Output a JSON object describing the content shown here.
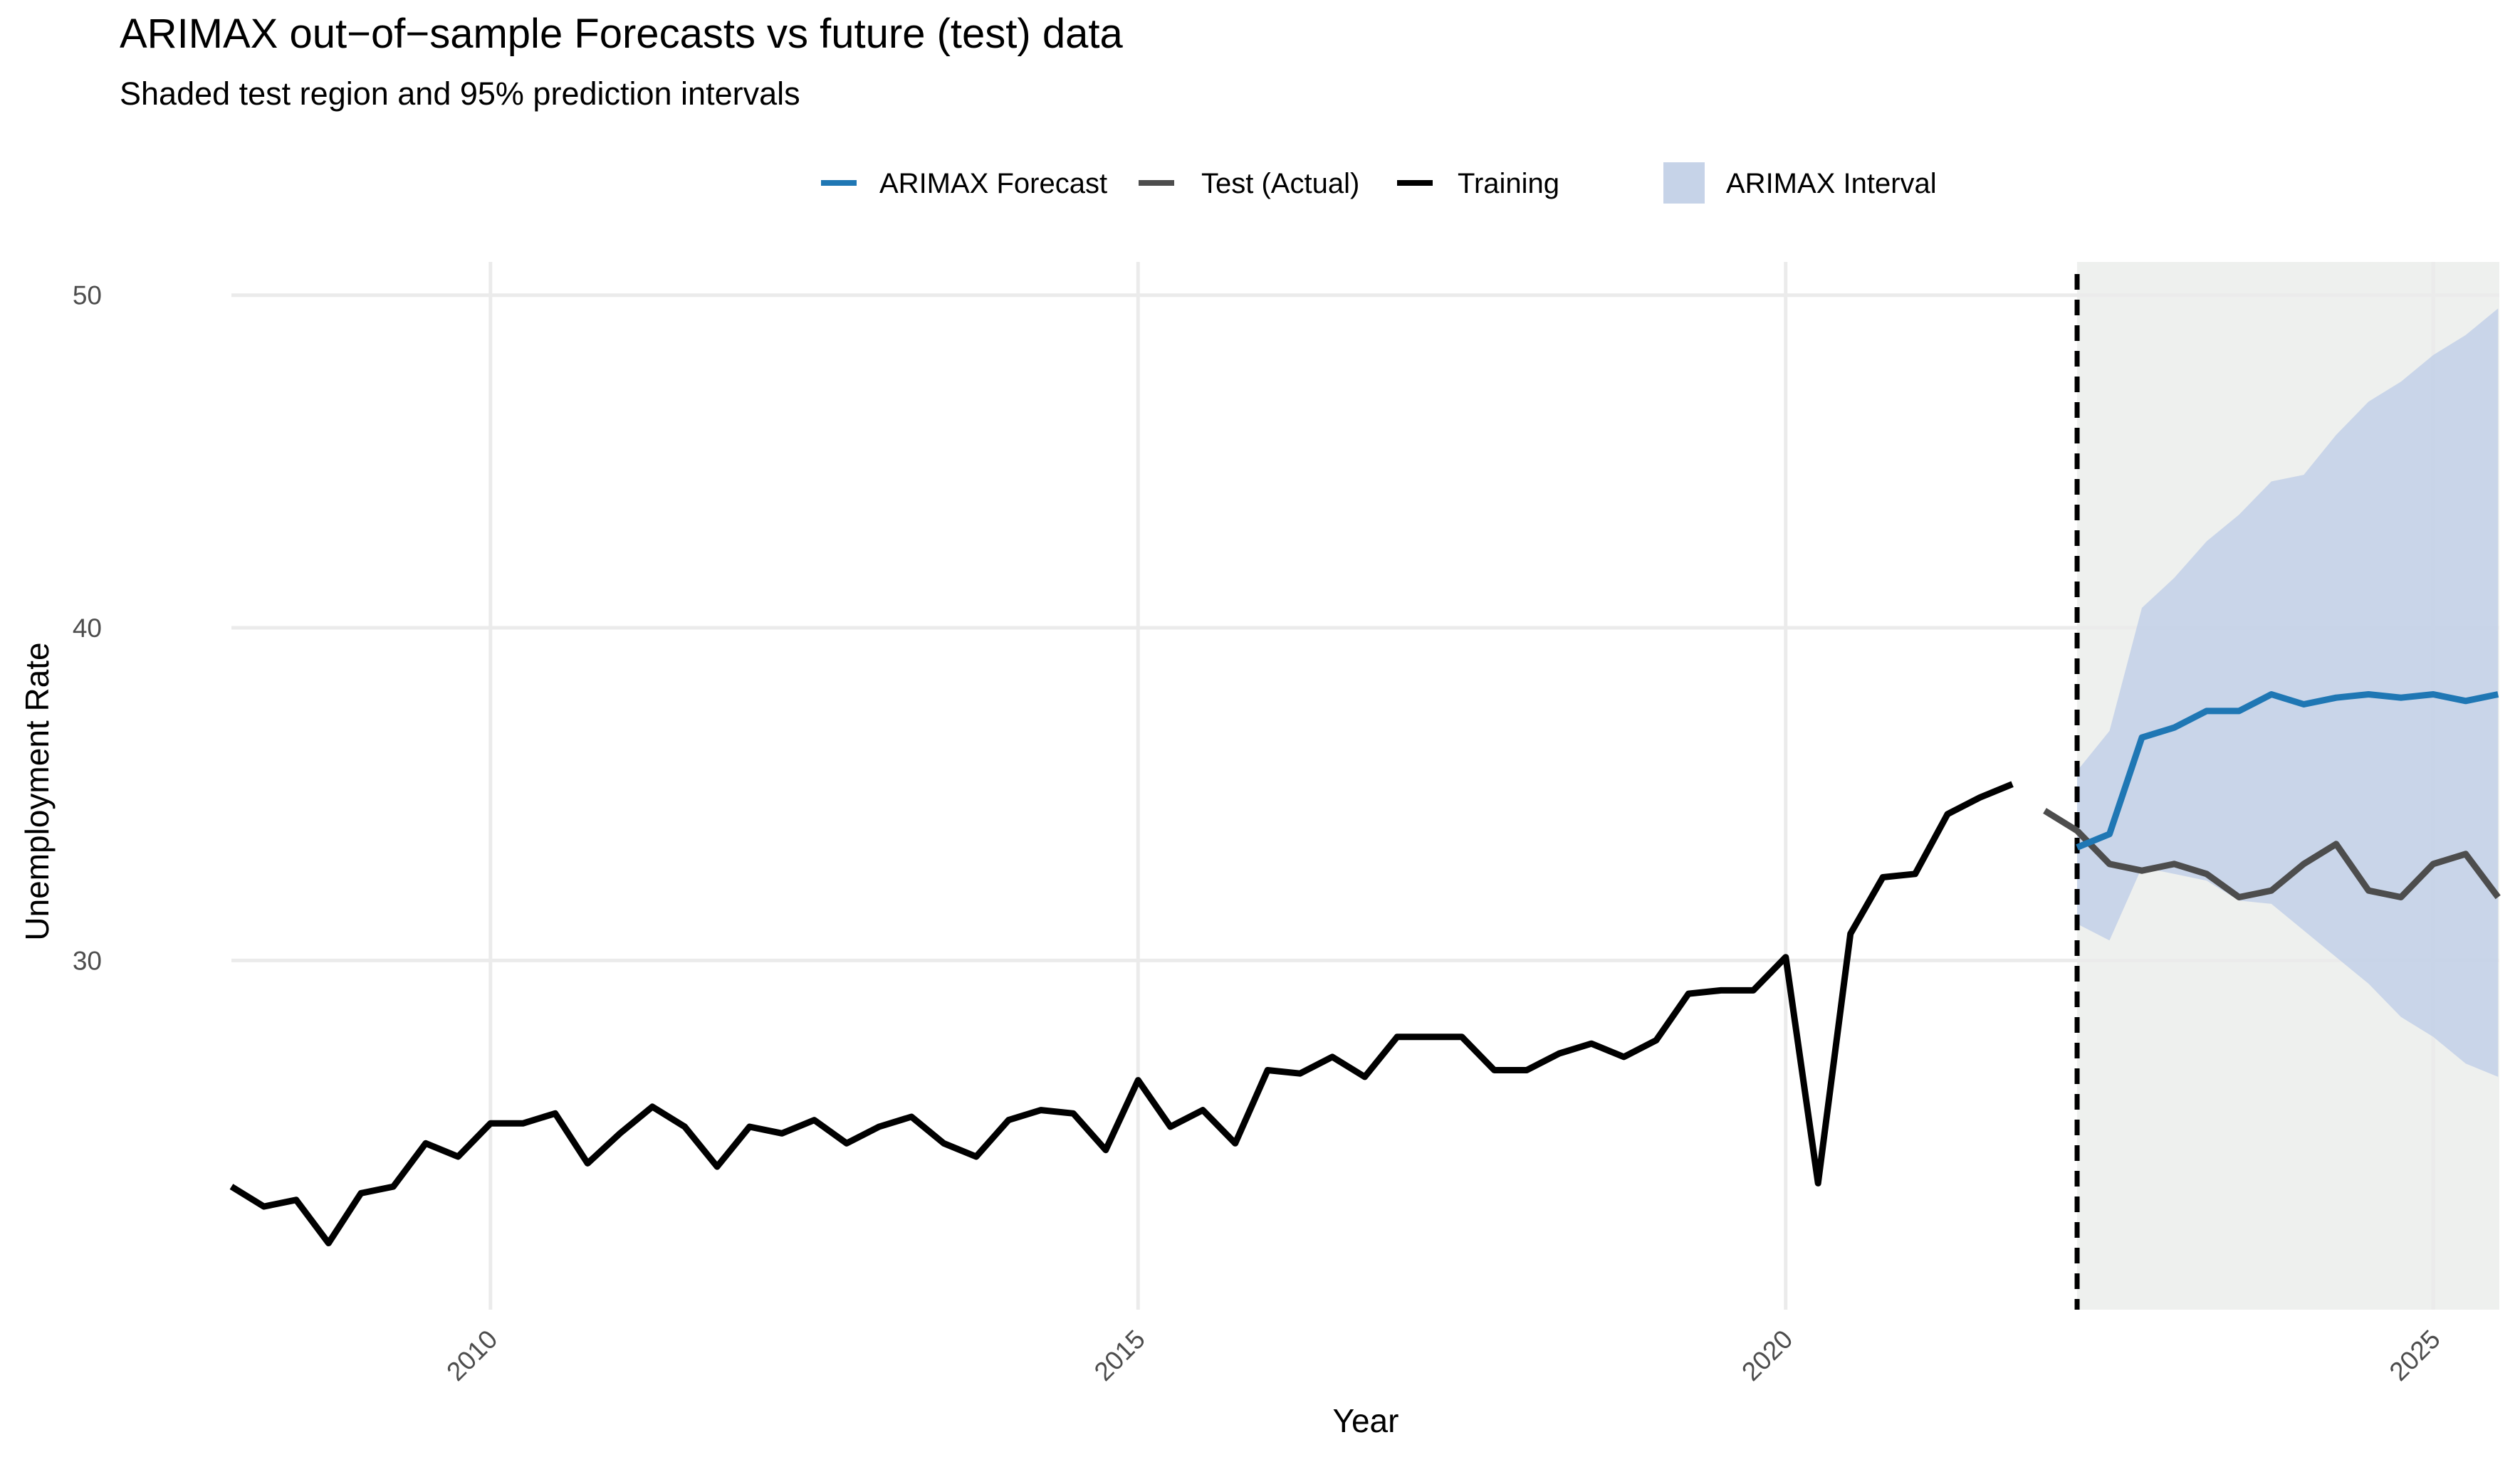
{
  "chart_data": {
    "type": "line",
    "title": "ARIMAX out−of−sample Forecasts vs future (test) data",
    "subtitle": "Shaded test region and 95% prediction intervals",
    "xlabel": "Year",
    "ylabel": "Unemployment Rate",
    "xlim": [
      2008.0,
      2025.51
    ],
    "ylim": [
      19.5,
      51.0
    ],
    "x_ticks": [
      2010,
      2015,
      2020,
      2025
    ],
    "x_tick_labels": [
      "2010",
      "2015",
      "2020",
      "2025"
    ],
    "y_ticks": [
      30,
      40,
      50
    ],
    "y_tick_labels": [
      "30",
      "40",
      "50"
    ],
    "grid": true,
    "legend_position": "top",
    "split_x": 2022.25,
    "legend": [
      {
        "label": "ARIMAX Forecast",
        "kind": "line",
        "color": "#1f77b4"
      },
      {
        "label": "Test (Actual)",
        "kind": "line",
        "color": "#4d4d4d"
      },
      {
        "label": "Training",
        "kind": "line",
        "color": "#000000"
      },
      {
        "label": "ARIMAX Interval",
        "kind": "fill",
        "color": "#c6d3e8"
      }
    ],
    "series": [
      {
        "name": "Training",
        "color": "#000000",
        "x": [
          2008.0,
          2008.25,
          2008.5,
          2008.75,
          2009.0,
          2009.25,
          2009.5,
          2009.75,
          2010.0,
          2010.25,
          2010.5,
          2010.75,
          2011.0,
          2011.25,
          2011.5,
          2011.75,
          2012.0,
          2012.25,
          2012.5,
          2012.75,
          2013.0,
          2013.25,
          2013.5,
          2013.75,
          2014.0,
          2014.25,
          2014.5,
          2014.75,
          2015.0,
          2015.25,
          2015.5,
          2015.75,
          2016.0,
          2016.25,
          2016.5,
          2016.75,
          2017.0,
          2017.25,
          2017.5,
          2017.75,
          2018.0,
          2018.25,
          2018.5,
          2018.75,
          2019.0,
          2019.25,
          2019.5,
          2019.75,
          2020.0,
          2020.25,
          2020.5,
          2020.75,
          2021.0,
          2021.25,
          2021.5,
          2021.75
        ],
        "y": [
          23.2,
          22.6,
          22.8,
          21.5,
          23.0,
          23.2,
          24.5,
          24.1,
          25.1,
          25.1,
          25.4,
          23.9,
          24.8,
          25.6,
          25.0,
          23.8,
          25.0,
          24.8,
          25.2,
          24.5,
          25.0,
          25.3,
          24.5,
          24.1,
          25.2,
          25.5,
          25.4,
          24.3,
          26.4,
          25.0,
          25.5,
          24.5,
          26.7,
          26.6,
          27.1,
          26.5,
          27.7,
          27.7,
          27.7,
          26.7,
          26.7,
          27.2,
          27.5,
          27.1,
          27.6,
          29.0,
          29.1,
          29.1,
          30.1,
          23.3,
          30.8,
          32.5,
          32.6,
          34.4,
          34.9,
          35.3
        ]
      },
      {
        "name": "Test (Actual)",
        "color": "#4d4d4d",
        "x": [
          2022.0,
          2022.25,
          2022.5,
          2022.75,
          2023.0,
          2023.25,
          2023.5,
          2023.75,
          2024.0,
          2024.25,
          2024.5,
          2024.75,
          2025.0,
          2025.25,
          2025.5
        ],
        "y": [
          34.5,
          33.9,
          32.9,
          32.7,
          32.9,
          32.6,
          31.9,
          32.1,
          32.9,
          33.5,
          32.1,
          31.9,
          32.9,
          33.2,
          31.9
        ]
      },
      {
        "name": "ARIMAX Forecast",
        "color": "#1f77b4",
        "x": [
          2022.25,
          2022.5,
          2022.75,
          2023.0,
          2023.25,
          2023.5,
          2023.75,
          2024.0,
          2024.25,
          2024.5,
          2024.75,
          2025.0,
          2025.25,
          2025.5
        ],
        "y": [
          33.4,
          33.8,
          36.7,
          37.0,
          37.5,
          37.5,
          38.0,
          37.7,
          37.9,
          38.0,
          37.9,
          38.0,
          37.8,
          38.0
        ]
      }
    ],
    "interval": {
      "name": "ARIMAX Interval",
      "color": "#c6d3e8",
      "x": [
        2022.25,
        2022.5,
        2022.75,
        2023.0,
        2023.25,
        2023.5,
        2023.75,
        2024.0,
        2024.25,
        2024.5,
        2024.75,
        2025.0,
        2025.25,
        2025.5
      ],
      "lower": [
        31.1,
        30.6,
        32.8,
        32.6,
        32.4,
        31.8,
        31.7,
        30.9,
        30.1,
        29.3,
        28.3,
        27.7,
        26.9,
        26.5
      ],
      "upper": [
        35.7,
        36.9,
        40.6,
        41.5,
        42.6,
        43.4,
        44.4,
        44.6,
        45.8,
        46.8,
        47.4,
        48.2,
        48.8,
        49.6
      ]
    }
  }
}
